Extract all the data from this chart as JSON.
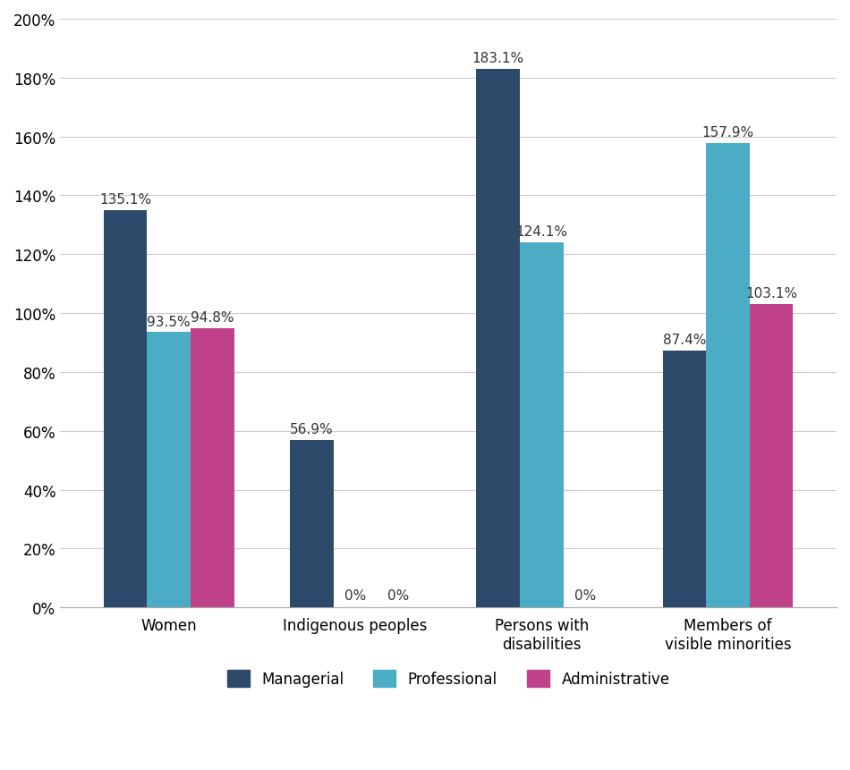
{
  "categories": [
    "Women",
    "Indigenous peoples",
    "Persons with\ndisabilities",
    "Members of\nvisible minorities"
  ],
  "series": {
    "Managerial": [
      135.1,
      56.9,
      183.1,
      87.4
    ],
    "Professional": [
      93.5,
      0.0,
      124.1,
      157.9
    ],
    "Administrative": [
      94.8,
      0.0,
      0.0,
      103.1
    ]
  },
  "colors": {
    "Managerial": "#2E4A6B",
    "Professional": "#4BACC6",
    "Administrative": "#C0428A"
  },
  "ylim": [
    0,
    200
  ],
  "yticks": [
    0,
    20,
    40,
    60,
    80,
    100,
    120,
    140,
    160,
    180,
    200
  ],
  "ytick_labels": [
    "0%",
    "20%",
    "40%",
    "60%",
    "80%",
    "100%",
    "120%",
    "140%",
    "160%",
    "180%",
    "200%"
  ],
  "bar_width": 0.28,
  "background_color": "#FFFFFF",
  "grid_color": "#CCCCCC",
  "label_fontsize": 12,
  "tick_fontsize": 12,
  "legend_fontsize": 12,
  "annotation_fontsize": 11
}
